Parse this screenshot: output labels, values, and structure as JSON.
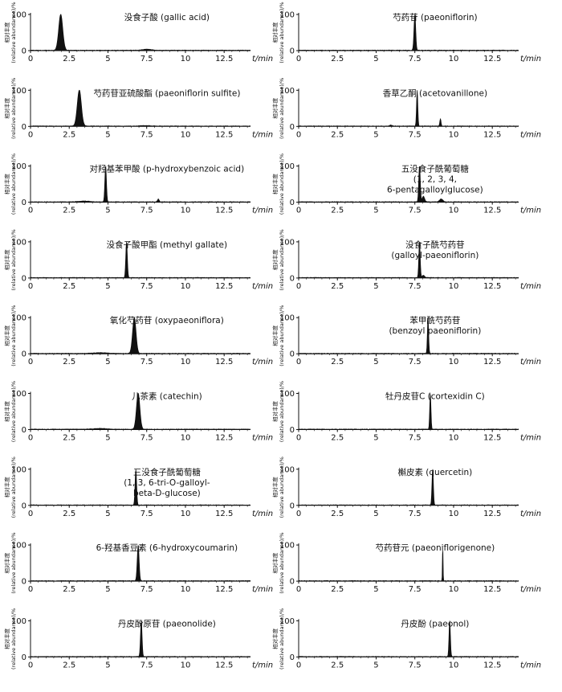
{
  "chart_data": {
    "type": "line",
    "title": "",
    "xlabel": "t/min",
    "ylabel_line1": "相对丰度",
    "ylabel_line2": "(relative abundance)/%",
    "xlim": [
      0,
      14.2
    ],
    "ylim": [
      0,
      100
    ],
    "x_ticks": [
      "0",
      "2.5",
      "5",
      "7.5",
      "10",
      "12.5"
    ],
    "y_ticks": [
      "0",
      "100"
    ],
    "panels": [
      {
        "title_lines": [
          "没食子酸 (gallic acid)"
        ],
        "peaks": [
          [
            1.95,
            100,
            0.13
          ],
          [
            7.5,
            3,
            0.25
          ]
        ]
      },
      {
        "title_lines": [
          "芍药苷 (paeoniflorin)"
        ],
        "peaks": [
          [
            7.5,
            100,
            0.055
          ]
        ]
      },
      {
        "title_lines": [
          "芍药苷亚硫酸酯 (paeoniflorin sulfite)"
        ],
        "peaks": [
          [
            3.15,
            100,
            0.13
          ],
          [
            7.4,
            1.5,
            0.3
          ]
        ]
      },
      {
        "title_lines": [
          "香草乙酮 (acetovanillone)"
        ],
        "peaks": [
          [
            7.65,
            100,
            0.04
          ],
          [
            9.15,
            20,
            0.04
          ],
          [
            5.95,
            3,
            0.08
          ]
        ]
      },
      {
        "title_lines": [
          "对羟基苯甲酸 (p-hydroxybenzoic acid)"
        ],
        "peaks": [
          [
            4.85,
            100,
            0.05
          ],
          [
            8.25,
            8,
            0.05
          ],
          [
            3.5,
            2,
            0.3
          ]
        ]
      },
      {
        "title_lines": [
          "五没食子酰葡萄糖",
          "(1, 2, 3, 4,",
          "6-pentagalloylglucose)"
        ],
        "peaks": [
          [
            7.8,
            100,
            0.05
          ],
          [
            8.05,
            15,
            0.08
          ],
          [
            9.2,
            8,
            0.1
          ]
        ]
      },
      {
        "title_lines": [
          "没食子酸甲酯 (methyl gallate)"
        ],
        "peaks": [
          [
            6.2,
            100,
            0.05
          ]
        ]
      },
      {
        "title_lines": [
          "没食子酰芍药苷",
          "(galloyl-paeoniflorin)"
        ],
        "peaks": [
          [
            7.8,
            100,
            0.045
          ],
          [
            8.05,
            6,
            0.08
          ]
        ]
      },
      {
        "title_lines": [
          "氧化芍药苷 (oxypaeoniflora)"
        ],
        "peaks": [
          [
            6.7,
            100,
            0.11
          ],
          [
            4.5,
            2,
            0.4
          ]
        ]
      },
      {
        "title_lines": [
          "苯甲酰芍药苷",
          "(benzoyl paeoniflorin)"
        ],
        "peaks": [
          [
            8.35,
            100,
            0.04
          ]
        ]
      },
      {
        "title_lines": [
          "儿茶素 (catechin)"
        ],
        "peaks": [
          [
            6.95,
            100,
            0.11
          ],
          [
            4.5,
            2,
            0.4
          ]
        ]
      },
      {
        "title_lines": [
          "牡丹皮苷C (cortexidin C)"
        ],
        "peaks": [
          [
            8.5,
            100,
            0.04
          ]
        ]
      },
      {
        "title_lines": [
          "三没食子酰葡萄糖",
          "(1, 3, 6-tri-O-galloyl-",
          "beta-D-glucose)"
        ],
        "peaks": [
          [
            6.8,
            100,
            0.05
          ]
        ]
      },
      {
        "title_lines": [
          "槲皮素 (quercetin)"
        ],
        "peaks": [
          [
            8.65,
            100,
            0.045
          ]
        ]
      },
      {
        "title_lines": [
          "6-羟基香豆素 (6-hydroxycoumarin)"
        ],
        "peaks": [
          [
            6.95,
            100,
            0.06
          ]
        ]
      },
      {
        "title_lines": [
          "芍药苷元 (paeoniflorigenone)"
        ],
        "peaks": [
          [
            9.3,
            100,
            0.02
          ]
        ]
      },
      {
        "title_lines": [
          "丹皮酚原苷 (paeonolide)"
        ],
        "peaks": [
          [
            7.15,
            100,
            0.05
          ]
        ]
      },
      {
        "title_lines": [
          "丹皮酚 (paeonol)"
        ],
        "peaks": [
          [
            9.75,
            100,
            0.045
          ]
        ]
      }
    ]
  }
}
